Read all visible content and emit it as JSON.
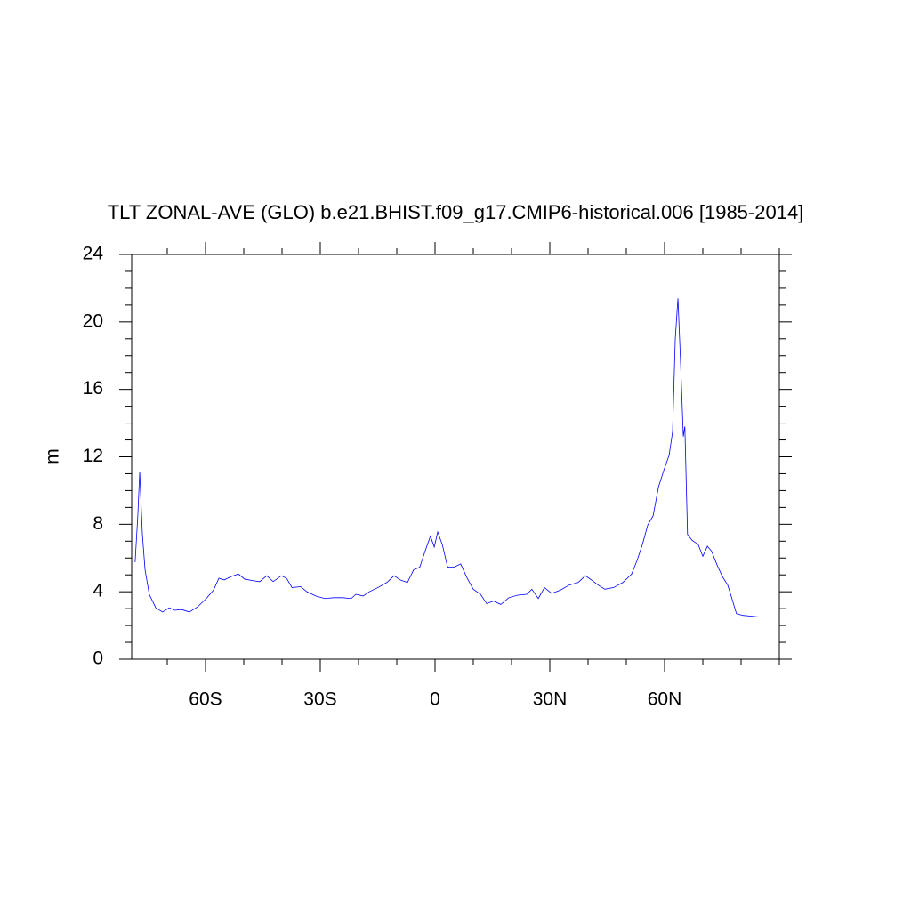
{
  "chart_data": {
    "type": "line",
    "title": "TLT ZONAL-AVE (GLO) b.e21.BHIST.f09_g17.CMIP6-historical.006 [1985-2014]",
    "y_label": "m",
    "xlim": [
      -79.3,
      90
    ],
    "ylim": [
      0,
      24
    ],
    "xticks": [
      {
        "value": -60,
        "label": "60S"
      },
      {
        "value": -30,
        "label": "30S"
      },
      0,
      {
        "value": 30,
        "label": "30N"
      },
      {
        "value": 60,
        "label": "60N"
      }
    ],
    "xminorticks": [
      -70,
      -50,
      -40,
      -20,
      -10,
      10,
      20,
      40,
      50,
      70,
      80,
      90
    ],
    "yticks": [
      0,
      4,
      8,
      12,
      16,
      20,
      24
    ],
    "yminorticks": [
      1,
      2,
      3,
      5,
      6,
      7,
      9,
      10,
      11,
      13,
      14,
      15,
      17,
      18,
      19,
      21,
      22,
      23
    ],
    "series": [
      {
        "color": "#0000ff",
        "x": [
          -78.4,
          -77.7,
          -77.2,
          -76.5,
          -75.8,
          -74.7,
          -73.0,
          -71.2,
          -69.5,
          -68.0,
          -66.3,
          -64.2,
          -62.1,
          -59.8,
          -57.9,
          -56.5,
          -55.1,
          -53.3,
          -51.4,
          -49.8,
          -47.4,
          -45.8,
          -44.0,
          -42.3,
          -40.2,
          -38.8,
          -37.4,
          -35.1,
          -33.5,
          -31.2,
          -28.8,
          -26.5,
          -24.2,
          -21.9,
          -20.7,
          -18.8,
          -17.2,
          -14.9,
          -12.6,
          -10.7,
          -9.1,
          -7.2,
          -5.6,
          -4.0,
          -2.6,
          -1.2,
          -0.2,
          0.7,
          1.9,
          3.3,
          4.9,
          6.7,
          8.4,
          10.0,
          11.9,
          13.5,
          15.3,
          17.2,
          19.3,
          21.6,
          24.0,
          25.3,
          27.0,
          28.6,
          30.5,
          32.8,
          35.1,
          37.4,
          39.3,
          40.9,
          42.6,
          44.4,
          46.7,
          49.1,
          51.4,
          52.8,
          54.2,
          55.6,
          57.0,
          58.4,
          59.8,
          61.2,
          62.1,
          62.8,
          63.5,
          64.2,
          64.9,
          65.3,
          66.0,
          67.2,
          68.8,
          70.0,
          71.2,
          72.3,
          73.7,
          75.1,
          76.5,
          77.4,
          78.8,
          80.5,
          82.8,
          85.1,
          90.0
        ],
        "values": [
          5.75,
          8.5,
          11.1,
          7.4,
          5.3,
          3.85,
          3.05,
          2.8,
          3.05,
          2.9,
          2.95,
          2.8,
          3.1,
          3.6,
          4.1,
          4.8,
          4.7,
          4.9,
          5.05,
          4.75,
          4.65,
          4.6,
          4.95,
          4.6,
          4.95,
          4.8,
          4.25,
          4.3,
          4.0,
          3.75,
          3.6,
          3.65,
          3.65,
          3.6,
          3.85,
          3.75,
          4.0,
          4.25,
          4.55,
          4.95,
          4.7,
          4.55,
          5.3,
          5.45,
          6.4,
          7.3,
          6.65,
          7.55,
          6.8,
          5.45,
          5.45,
          5.65,
          4.8,
          4.15,
          3.85,
          3.3,
          3.45,
          3.25,
          3.65,
          3.8,
          3.85,
          4.15,
          3.6,
          4.25,
          3.9,
          4.1,
          4.4,
          4.55,
          4.95,
          4.7,
          4.4,
          4.15,
          4.25,
          4.55,
          5.05,
          5.85,
          6.8,
          7.95,
          8.5,
          10.2,
          11.2,
          12.1,
          13.5,
          19.0,
          21.4,
          17.5,
          13.2,
          13.8,
          7.4,
          7.05,
          6.8,
          6.1,
          6.7,
          6.4,
          5.6,
          4.9,
          4.4,
          3.75,
          2.7,
          2.6,
          2.55,
          2.5,
          2.5
        ]
      }
    ]
  }
}
